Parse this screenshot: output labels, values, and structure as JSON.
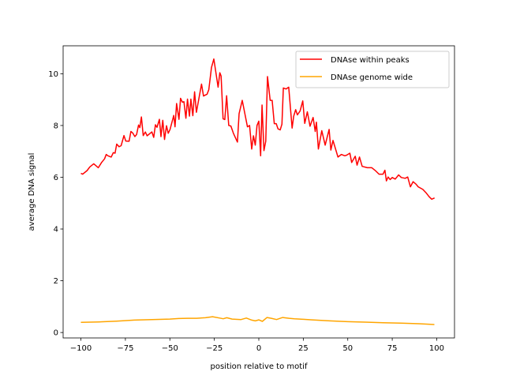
{
  "chart_data": {
    "type": "line",
    "title": "",
    "xlabel": "position relative to motif",
    "ylabel": "average DNA signal",
    "xlim": [
      -110,
      110
    ],
    "ylim": [
      -0.21,
      11.08
    ],
    "xticks": [
      -100,
      -75,
      -50,
      -25,
      0,
      25,
      50,
      75,
      100
    ],
    "yticks": [
      0,
      2,
      4,
      6,
      8,
      10
    ],
    "grid": false,
    "legend_position": "top-right",
    "series": [
      {
        "name": "DNAse within peaks",
        "color": "#ff0000",
        "x": [
          -100,
          -99,
          -96.5,
          -95,
          -92.8,
          -90.2,
          -88.4,
          -86.7,
          -85.8,
          -84.8,
          -83,
          -81.8,
          -80.8,
          -79.9,
          -78.6,
          -77.4,
          -75.8,
          -74.8,
          -72.9,
          -71.9,
          -70.9,
          -69.7,
          -68.7,
          -67.6,
          -66.9,
          -66,
          -65,
          -63.8,
          -62.8,
          -60.1,
          -59.1,
          -58.1,
          -57.2,
          -55.9,
          -55,
          -54,
          -53,
          -51.9,
          -50.9,
          -49.9,
          -47.8,
          -47.1,
          -46.2,
          -44.9,
          -44,
          -43,
          -42.1,
          -41,
          -40.1,
          -39,
          -38.2,
          -37.1,
          -36.1,
          -35.1,
          -32.2,
          -31.1,
          -29.1,
          -28.1,
          -26.6,
          -25.3,
          -22.9,
          -21.9,
          -21.2,
          -20.1,
          -19.1,
          -18.1,
          -16.9,
          -15.7,
          -14.3,
          -12,
          -11.1,
          -9.3,
          -6.4,
          -5.2,
          -4,
          -3,
          -2,
          -1,
          0,
          1,
          1.8,
          2.9,
          3.9,
          4.9,
          6.4,
          7.5,
          8.7,
          9.8,
          10.8,
          12,
          13,
          13.8,
          15.3,
          16.8,
          18.7,
          19.6,
          20.7,
          21.7,
          23.2,
          24.7,
          25.8,
          27.3,
          28.8,
          30.5,
          31.7,
          32.4,
          33.5,
          35.4,
          37.3,
          39.5,
          40.5,
          41.7,
          42.7,
          44.5,
          46.4,
          48.3,
          49.3,
          51.2,
          52.2,
          54.2,
          55.2,
          56.6,
          58.1,
          61,
          63.5,
          65.8,
          67.6,
          69.8,
          70.9,
          71.7,
          72.7,
          73.8,
          75,
          76.7,
          78.6,
          80.1,
          82.3,
          83.7,
          85.2,
          86.7,
          88.4,
          89.6,
          92.2,
          94,
          95.7,
          97.2,
          98.8
        ],
        "y": [
          6.15,
          6.12,
          6.26,
          6.4,
          6.52,
          6.37,
          6.57,
          6.71,
          6.88,
          6.83,
          6.78,
          6.95,
          6.93,
          7.28,
          7.18,
          7.22,
          7.61,
          7.4,
          7.39,
          7.77,
          7.71,
          7.57,
          7.65,
          8.02,
          7.92,
          8.33,
          7.61,
          7.75,
          7.6,
          7.75,
          7.54,
          8.03,
          7.93,
          8.24,
          7.57,
          8.2,
          7.46,
          7.99,
          7.7,
          7.85,
          8.39,
          7.95,
          8.85,
          8.24,
          9.05,
          8.9,
          8.92,
          8.28,
          9.02,
          8.36,
          9.02,
          8.38,
          9.3,
          8.51,
          9.6,
          9.14,
          9.21,
          9.38,
          10.24,
          10.57,
          9.48,
          10.04,
          9.91,
          8.26,
          8.23,
          9.15,
          8.0,
          7.98,
          7.7,
          7.36,
          8.46,
          8.97,
          7.95,
          8.0,
          7.09,
          7.6,
          7.24,
          8.0,
          8.17,
          6.83,
          8.79,
          7.03,
          7.39,
          9.89,
          8.97,
          8.97,
          8.07,
          8.07,
          7.87,
          7.83,
          8.05,
          9.45,
          9.41,
          9.48,
          7.9,
          8.36,
          8.61,
          8.41,
          8.56,
          8.95,
          8.08,
          8.53,
          7.97,
          8.31,
          7.77,
          8.13,
          7.09,
          7.8,
          7.24,
          7.85,
          7.05,
          7.42,
          7.19,
          6.78,
          6.88,
          6.83,
          6.85,
          6.93,
          6.57,
          6.81,
          6.47,
          6.78,
          6.42,
          6.37,
          6.37,
          6.24,
          6.12,
          6.12,
          6.27,
          5.86,
          6.01,
          5.91,
          5.99,
          5.93,
          6.09,
          5.99,
          5.96,
          6.01,
          5.63,
          5.83,
          5.73,
          5.63,
          5.53,
          5.4,
          5.25,
          5.15,
          5.2
        ]
      },
      {
        "name": "DNAse genome wide",
        "color": "#ffa500",
        "x": [
          -100,
          -90,
          -80,
          -70,
          -60,
          -50,
          -45,
          -40,
          -35,
          -30,
          -26,
          -22,
          -20,
          -18,
          -15,
          -10,
          -7,
          -4,
          -2,
          0,
          2,
          4.6,
          7,
          10,
          13.4,
          17,
          20,
          25,
          30,
          40,
          50,
          60,
          70,
          80,
          90,
          98.7
        ],
        "y": [
          0.39,
          0.41,
          0.44,
          0.48,
          0.5,
          0.52,
          0.54,
          0.55,
          0.55,
          0.57,
          0.61,
          0.56,
          0.53,
          0.57,
          0.52,
          0.5,
          0.56,
          0.48,
          0.45,
          0.49,
          0.43,
          0.58,
          0.55,
          0.5,
          0.58,
          0.55,
          0.53,
          0.51,
          0.49,
          0.45,
          0.42,
          0.4,
          0.38,
          0.36,
          0.34,
          0.31
        ]
      }
    ]
  }
}
